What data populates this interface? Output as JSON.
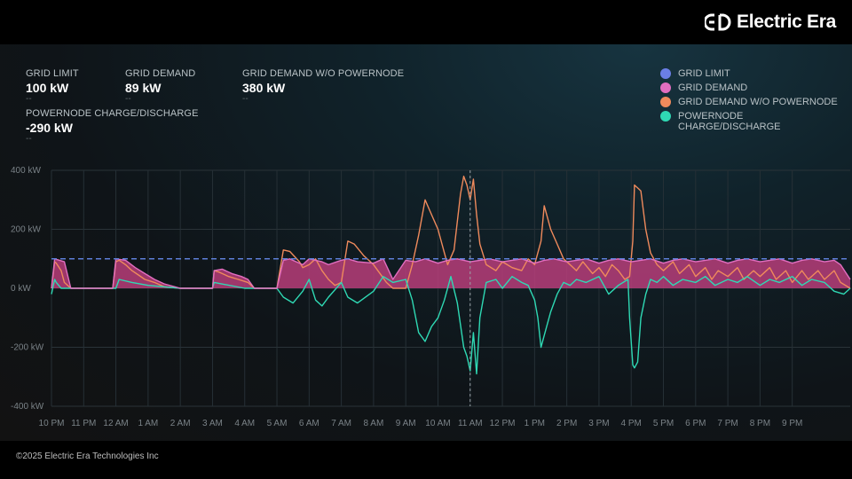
{
  "brand": {
    "name": "Electric Era",
    "logo_icon": "electric-era-logo-icon"
  },
  "stats": [
    {
      "label": "GRID LIMIT",
      "value": "100 kW",
      "sub": "--"
    },
    {
      "label": "GRID DEMAND",
      "value": "89 kW",
      "sub": "--"
    },
    {
      "label": "GRID DEMAND W/O POWERNODE",
      "value": "380 kW",
      "sub": "--"
    },
    {
      "label": "POWERNODE CHARGE/DISCHARGE",
      "value": "-290 kW",
      "sub": "--"
    }
  ],
  "legend": [
    {
      "label": "GRID LIMIT",
      "color": "#6b7fe6"
    },
    {
      "label": "GRID DEMAND",
      "color": "#e26ec0"
    },
    {
      "label": "GRID DEMAND W/O POWERNODE",
      "color": "#ef8a5c"
    },
    {
      "label": "POWERNODE\nCHARGE/DISCHARGE",
      "color": "#2fd9b4"
    }
  ],
  "footer": {
    "copyright": "©2025 Electric Era Technologies Inc"
  },
  "chart_data": {
    "type": "line",
    "title": "",
    "xlabel": "",
    "ylabel": "",
    "ylim": [
      -400,
      400
    ],
    "xlim": [
      22,
      46.8
    ],
    "y_ticks": [
      "400 kW",
      "200 kW",
      "0 kW",
      "-200 kW",
      "-400 kW"
    ],
    "y_tick_values": [
      400,
      200,
      0,
      -200,
      -400
    ],
    "x_ticks": [
      "10 PM",
      "11 PM",
      "12 AM",
      "1 AM",
      "2 AM",
      "3 AM",
      "4 AM",
      "5 AM",
      "6 AM",
      "7 AM",
      "8 AM",
      "9 AM",
      "10 AM",
      "11 AM",
      "12 PM",
      "1 PM",
      "2 PM",
      "3 PM",
      "4 PM",
      "5 PM",
      "6 PM",
      "7 PM",
      "8 PM",
      "9 PM"
    ],
    "grid": true,
    "legend_position": "top-right",
    "cursor_x": 35,
    "grid_limit": 100,
    "series": [
      {
        "name": "GRID DEMAND W/O POWERNODE",
        "color": "#ef8a5c",
        "x": [
          22.0,
          22.1,
          22.15,
          22.3,
          22.4,
          22.6,
          23.0,
          23.5,
          23.9,
          24.0,
          24.1,
          24.3,
          24.5,
          24.7,
          24.9,
          25.2,
          25.5,
          26.0,
          26.5,
          27.0,
          27.05,
          27.2,
          27.5,
          27.8,
          28.1,
          28.3,
          28.5,
          28.7,
          29.0,
          29.2,
          29.4,
          29.7,
          29.8,
          30.0,
          30.2,
          30.4,
          30.6,
          30.8,
          31.0,
          31.2,
          31.4,
          31.7,
          32.0,
          32.2,
          32.4,
          32.6,
          32.8,
          33.0,
          33.2,
          33.4,
          33.6,
          33.8,
          34.0,
          34.2,
          34.3,
          34.5,
          34.7,
          34.8,
          34.9,
          35.0,
          35.1,
          35.2,
          35.3,
          35.5,
          35.8,
          36.0,
          36.3,
          36.6,
          36.8,
          37.0,
          37.1,
          37.2,
          37.3,
          37.5,
          37.7,
          37.9,
          38.1,
          38.3,
          38.5,
          38.8,
          39.0,
          39.2,
          39.4,
          39.6,
          39.8,
          39.95,
          40.05,
          40.1,
          40.2,
          40.3,
          40.45,
          40.6,
          40.8,
          41.0,
          41.3,
          41.5,
          41.8,
          42.0,
          42.3,
          42.5,
          42.7,
          43.0,
          43.3,
          43.5,
          43.8,
          44.0,
          44.3,
          44.5,
          44.8,
          45.0,
          45.3,
          45.5,
          45.8,
          46.0,
          46.3,
          46.5,
          46.8
        ],
        "y": [
          0,
          90,
          85,
          60,
          20,
          0,
          0,
          0,
          0,
          90,
          95,
          80,
          60,
          45,
          30,
          20,
          5,
          0,
          0,
          0,
          60,
          55,
          40,
          30,
          20,
          0,
          0,
          0,
          0,
          130,
          125,
          90,
          70,
          80,
          100,
          60,
          30,
          10,
          20,
          160,
          150,
          110,
          80,
          50,
          20,
          0,
          0,
          0,
          80,
          180,
          300,
          250,
          200,
          120,
          80,
          130,
          320,
          380,
          350,
          300,
          370,
          250,
          150,
          80,
          60,
          90,
          70,
          60,
          100,
          80,
          120,
          160,
          280,
          200,
          150,
          100,
          80,
          60,
          90,
          50,
          70,
          40,
          80,
          60,
          30,
          40,
          160,
          350,
          340,
          330,
          200,
          120,
          80,
          60,
          90,
          50,
          80,
          40,
          70,
          30,
          60,
          40,
          70,
          30,
          60,
          40,
          70,
          30,
          60,
          20,
          60,
          30,
          60,
          30,
          60,
          20,
          0
        ]
      },
      {
        "name": "POWERNODE CHARGE/DISCHARGE",
        "color": "#2fd9b4",
        "x": [
          22.0,
          22.1,
          22.15,
          22.3,
          22.4,
          22.6,
          23.0,
          24.0,
          24.1,
          24.5,
          25.0,
          26.0,
          27.0,
          27.05,
          28.0,
          29.0,
          29.2,
          29.5,
          29.8,
          30.0,
          30.2,
          30.4,
          30.6,
          31.0,
          31.2,
          31.5,
          32.0,
          32.3,
          32.6,
          33.0,
          33.2,
          33.4,
          33.6,
          33.8,
          34.0,
          34.2,
          34.4,
          34.6,
          34.8,
          34.9,
          35.0,
          35.1,
          35.2,
          35.3,
          35.5,
          35.8,
          36.0,
          36.3,
          36.6,
          36.8,
          37.0,
          37.1,
          37.2,
          37.3,
          37.5,
          37.7,
          37.9,
          38.1,
          38.3,
          38.6,
          39.0,
          39.3,
          39.6,
          39.9,
          39.95,
          40.05,
          40.1,
          40.2,
          40.3,
          40.45,
          40.6,
          40.8,
          41.0,
          41.3,
          41.6,
          42.0,
          42.3,
          42.6,
          43.0,
          43.3,
          43.6,
          44.0,
          44.3,
          44.6,
          45.0,
          45.3,
          45.6,
          46.0,
          46.3,
          46.6,
          46.8
        ],
        "y": [
          -20,
          30,
          20,
          0,
          0,
          0,
          0,
          0,
          30,
          20,
          10,
          0,
          0,
          20,
          0,
          0,
          -30,
          -50,
          -10,
          30,
          -40,
          -60,
          -30,
          20,
          -30,
          -50,
          -10,
          40,
          20,
          30,
          -40,
          -150,
          -180,
          -130,
          -100,
          -40,
          40,
          -50,
          -200,
          -230,
          -280,
          -150,
          -290,
          -100,
          20,
          30,
          0,
          40,
          20,
          10,
          -40,
          -100,
          -200,
          -160,
          -80,
          -20,
          20,
          10,
          30,
          20,
          40,
          -20,
          10,
          30,
          -100,
          -260,
          -270,
          -250,
          -100,
          -20,
          30,
          20,
          40,
          10,
          30,
          20,
          40,
          10,
          30,
          20,
          40,
          10,
          30,
          20,
          40,
          10,
          30,
          20,
          -10,
          -20,
          0
        ]
      },
      {
        "name": "GRID DEMAND",
        "color": "#e26ec0",
        "x": [
          22.0,
          22.1,
          22.4,
          22.6,
          23.0,
          23.9,
          24.0,
          24.3,
          24.6,
          24.9,
          25.2,
          25.5,
          26.0,
          27.0,
          27.05,
          27.3,
          27.6,
          27.9,
          28.1,
          28.3,
          29.0,
          29.2,
          29.4,
          29.6,
          29.8,
          30.0,
          30.2,
          30.4,
          30.6,
          31.0,
          31.2,
          31.5,
          32.0,
          32.3,
          32.6,
          33.0,
          33.3,
          33.6,
          34.0,
          34.3,
          34.6,
          35.0,
          35.3,
          35.6,
          36.0,
          36.3,
          36.6,
          37.0,
          37.3,
          37.6,
          38.0,
          38.3,
          38.6,
          39.0,
          39.3,
          39.6,
          40.0,
          40.3,
          40.6,
          41.0,
          41.3,
          41.6,
          42.0,
          42.3,
          42.6,
          43.0,
          43.3,
          43.6,
          44.0,
          44.3,
          44.6,
          45.0,
          45.3,
          45.6,
          46.0,
          46.3,
          46.5,
          46.8
        ],
        "y": [
          0,
          100,
          90,
          0,
          0,
          0,
          100,
          95,
          70,
          50,
          30,
          15,
          0,
          0,
          60,
          65,
          50,
          40,
          30,
          0,
          0,
          95,
          100,
          90,
          80,
          100,
          95,
          90,
          80,
          95,
          100,
          90,
          85,
          100,
          30,
          95,
          90,
          100,
          85,
          95,
          100,
          90,
          95,
          100,
          90,
          95,
          100,
          85,
          95,
          100,
          90,
          95,
          100,
          85,
          95,
          100,
          90,
          95,
          100,
          85,
          95,
          100,
          90,
          95,
          100,
          85,
          95,
          100,
          90,
          95,
          100,
          85,
          95,
          100,
          90,
          95,
          80,
          30
        ]
      }
    ]
  }
}
